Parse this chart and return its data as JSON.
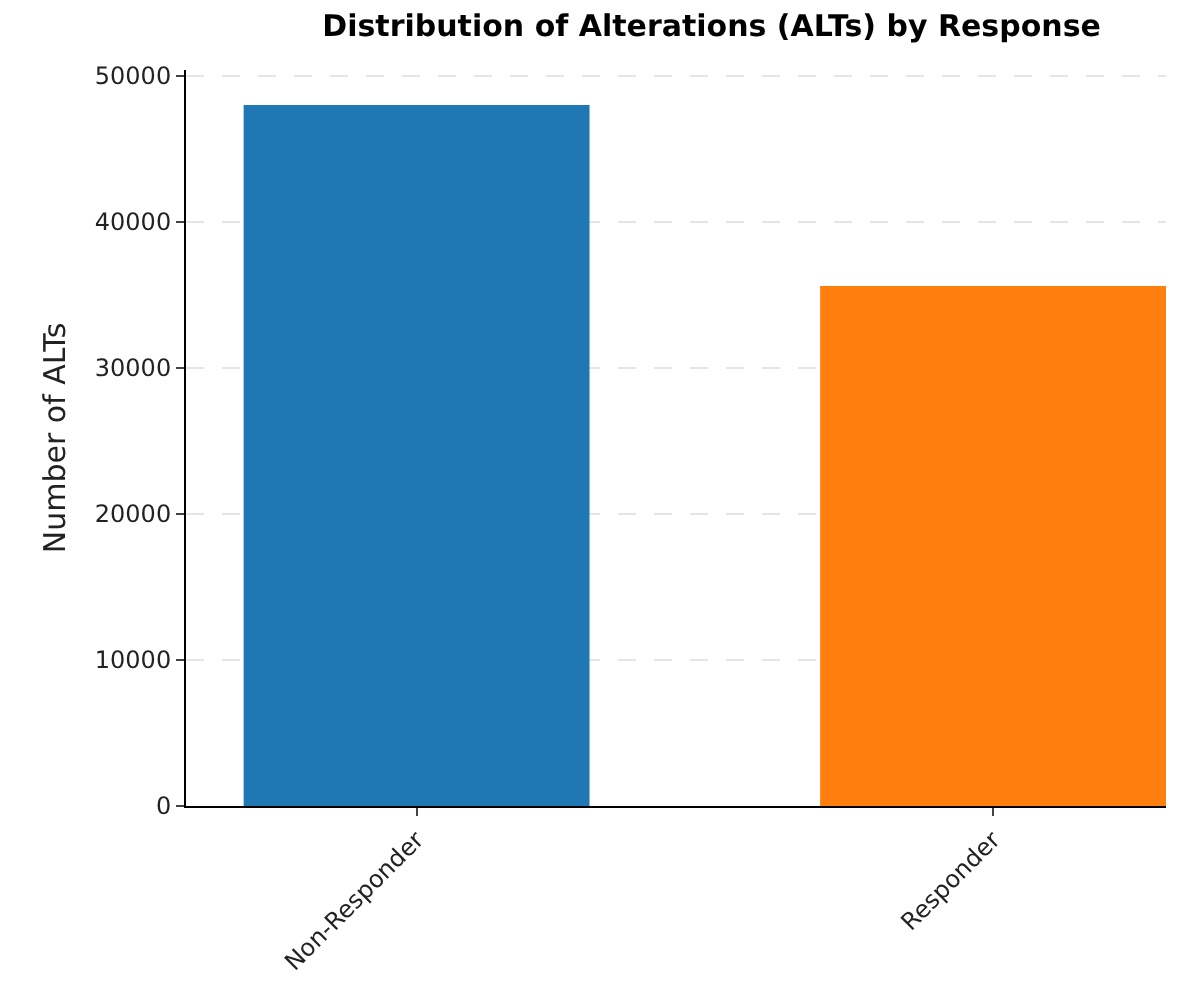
{
  "chart_data": {
    "type": "bar",
    "title": "Distribution of Alterations (ALTs) by Response",
    "ylabel": "Number of ALTs",
    "categories": [
      "Non-Responder",
      "Responder"
    ],
    "values": [
      48000,
      35600
    ],
    "colors": [
      "#1f77b4",
      "#ff7f0e"
    ],
    "ylim": [
      0,
      50400
    ],
    "yticks": [
      0,
      10000,
      20000,
      30000,
      40000,
      50000
    ],
    "grid": "y"
  }
}
